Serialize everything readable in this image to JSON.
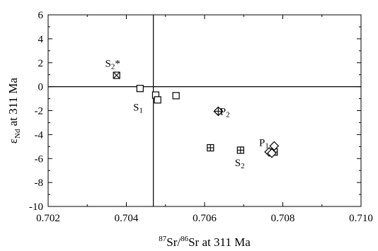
{
  "chart_data": {
    "type": "scatter",
    "title": "",
    "xlabel": {
      "sup1": "87",
      "a": "Sr/",
      "sup2": "86",
      "b": "Sr at 311 Ma"
    },
    "ylabel": {
      "a": "ε",
      "sub": "Nd",
      "b": " at 311 Ma"
    },
    "xlim": [
      0.702,
      0.71
    ],
    "ylim": [
      -10,
      6
    ],
    "x_ticks": [
      "0.702",
      "0.704",
      "0.706",
      "0.708",
      "0.710"
    ],
    "x_tick_values": [
      0.702,
      0.704,
      0.706,
      0.708,
      0.71
    ],
    "y_ticks": [
      "6",
      "4",
      "2",
      "0",
      "-2",
      "-4",
      "-6",
      "-8",
      "-10"
    ],
    "y_tick_values": [
      6,
      4,
      2,
      0,
      -2,
      -4,
      -6,
      -8,
      -10
    ],
    "reference_lines": {
      "x": 0.70469,
      "y": 0
    },
    "grid": false,
    "series": [
      {
        "marker": "square-x",
        "points": [
          {
            "x": 0.70375,
            "y": 0.95
          }
        ]
      },
      {
        "marker": "square",
        "points": [
          {
            "x": 0.70435,
            "y": -0.15
          },
          {
            "x": 0.70475,
            "y": -0.7
          },
          {
            "x": 0.7048,
            "y": -1.1
          },
          {
            "x": 0.70527,
            "y": -0.75
          }
        ]
      },
      {
        "marker": "diamond-plus",
        "points": [
          {
            "x": 0.70635,
            "y": -2.05
          }
        ]
      },
      {
        "marker": "square-plus",
        "points": [
          {
            "x": 0.70615,
            "y": -5.1
          },
          {
            "x": 0.70692,
            "y": -5.3
          },
          {
            "x": 0.70778,
            "y": -5.45
          }
        ]
      },
      {
        "marker": "diamond",
        "points": [
          {
            "x": 0.70778,
            "y": -4.95
          },
          {
            "x": 0.70765,
            "y": -5.45
          },
          {
            "x": 0.70772,
            "y": -5.55
          }
        ]
      }
    ],
    "annotations": [
      {
        "id": "s2star",
        "main": "S",
        "sub": "2",
        "suffix": "*",
        "x": 0.70365,
        "y": 1.95
      },
      {
        "id": "s1",
        "main": "S",
        "sub": "1",
        "suffix": "",
        "x": 0.7043,
        "y": -1.7
      },
      {
        "id": "p2",
        "main": "P",
        "sub": "2",
        "suffix": "",
        "x": 0.70652,
        "y": -2.05
      },
      {
        "id": "p1",
        "main": "P",
        "sub": "1",
        "suffix": "",
        "x": 0.70752,
        "y": -4.65
      },
      {
        "id": "s2",
        "main": "S",
        "sub": "2",
        "suffix": "",
        "x": 0.7069,
        "y": -6.35
      }
    ]
  }
}
